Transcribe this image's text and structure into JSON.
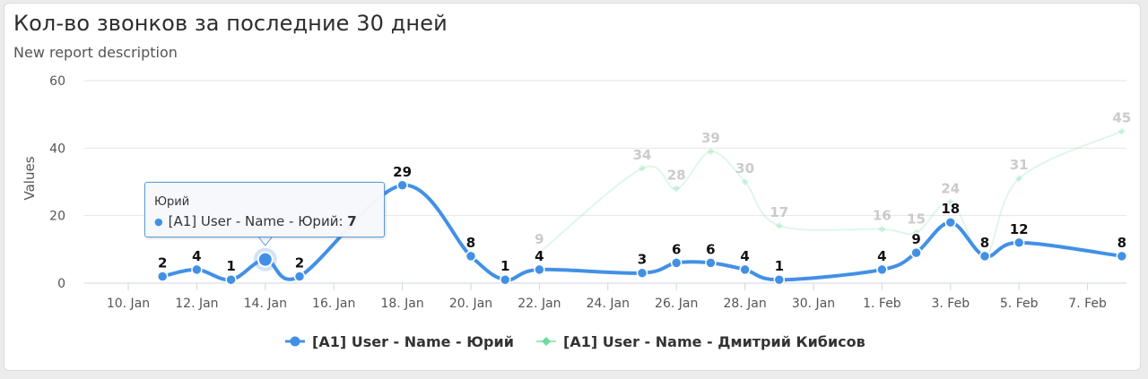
{
  "report": {
    "title": "Кол-во звонков за последние 30 дней",
    "description": "New report description"
  },
  "chart_data": {
    "type": "line",
    "ylabel": "Values",
    "xlabel": "",
    "ylim": [
      0,
      60
    ],
    "yticks": [
      0,
      20,
      40,
      60
    ],
    "grid": true,
    "legend_position": "bottom-center",
    "x_tick_labels": [
      {
        "date": "2024-01-10",
        "label": "10. Jan"
      },
      {
        "date": "2024-01-12",
        "label": "12. Jan"
      },
      {
        "date": "2024-01-14",
        "label": "14. Jan"
      },
      {
        "date": "2024-01-16",
        "label": "16. Jan"
      },
      {
        "date": "2024-01-18",
        "label": "18. Jan"
      },
      {
        "date": "2024-01-20",
        "label": "20. Jan"
      },
      {
        "date": "2024-01-22",
        "label": "22. Jan"
      },
      {
        "date": "2024-01-24",
        "label": "24. Jan"
      },
      {
        "date": "2024-01-26",
        "label": "26. Jan"
      },
      {
        "date": "2024-01-28",
        "label": "28. Jan"
      },
      {
        "date": "2024-01-30",
        "label": "30. Jan"
      },
      {
        "date": "2024-02-01",
        "label": "1. Feb"
      },
      {
        "date": "2024-02-03",
        "label": "3. Feb"
      },
      {
        "date": "2024-02-05",
        "label": "5. Feb"
      },
      {
        "date": "2024-02-07",
        "label": "7. Feb"
      }
    ],
    "series": [
      {
        "name": "[A1] User - Name - Юрий",
        "color": "#4290e6",
        "faded": false,
        "points": [
          {
            "x": "2024-01-11",
            "y": 2
          },
          {
            "x": "2024-01-12",
            "y": 4
          },
          {
            "x": "2024-01-13",
            "y": 1
          },
          {
            "x": "2024-01-14",
            "y": 7,
            "label_hidden": true
          },
          {
            "x": "2024-01-15",
            "y": 2
          },
          {
            "x": "2024-01-18",
            "y": 29
          },
          {
            "x": "2024-01-20",
            "y": 8
          },
          {
            "x": "2024-01-21",
            "y": 1
          },
          {
            "x": "2024-01-22",
            "y": 4
          },
          {
            "x": "2024-01-25",
            "y": 3
          },
          {
            "x": "2024-01-26",
            "y": 6
          },
          {
            "x": "2024-01-27",
            "y": 6
          },
          {
            "x": "2024-01-28",
            "y": 4
          },
          {
            "x": "2024-01-29",
            "y": 1
          },
          {
            "x": "2024-02-01",
            "y": 4
          },
          {
            "x": "2024-02-02",
            "y": 9
          },
          {
            "x": "2024-02-03",
            "y": 18
          },
          {
            "x": "2024-02-04",
            "y": 8
          },
          {
            "x": "2024-02-05",
            "y": 12
          },
          {
            "x": "2024-02-08",
            "y": 8
          }
        ]
      },
      {
        "name": "[A1] User - Name - Дмитрий Кибисов",
        "color": "#6edc9e",
        "faded": true,
        "points": [
          {
            "x": "2024-01-22",
            "y": 9
          },
          {
            "x": "2024-01-25",
            "y": 34
          },
          {
            "x": "2024-01-26",
            "y": 28
          },
          {
            "x": "2024-01-27",
            "y": 39
          },
          {
            "x": "2024-01-28",
            "y": 30
          },
          {
            "x": "2024-01-29",
            "y": 17
          },
          {
            "x": "2024-02-01",
            "y": 16
          },
          {
            "x": "2024-02-02",
            "y": 15
          },
          {
            "x": "2024-02-03",
            "y": 24
          },
          {
            "x": "2024-02-04",
            "y": 8
          },
          {
            "x": "2024-02-05",
            "y": 31
          },
          {
            "x": "2024-02-08",
            "y": 45
          }
        ]
      }
    ],
    "highlighted_point": {
      "series": 0,
      "x": "2024-01-14",
      "y": 7
    }
  },
  "tooltip": {
    "header": "Юрий",
    "series_label": "[A1] User - Name - Юрий: ",
    "value": "7"
  }
}
